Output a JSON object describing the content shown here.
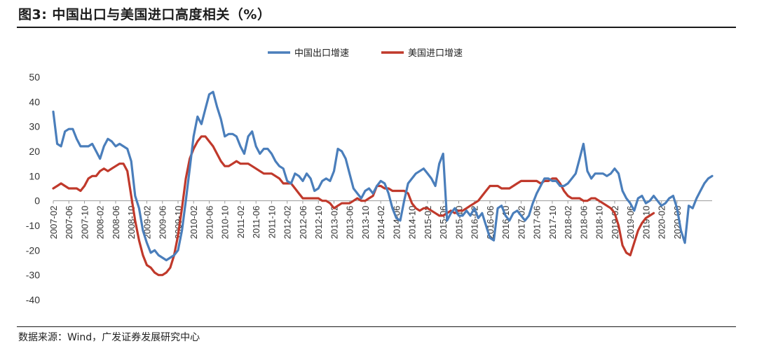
{
  "header": {
    "title": "图3:  中国出口与美国进口高度相关（%）"
  },
  "footer": {
    "source": "数据来源：Wind，广发证券发展研究中心"
  },
  "chart_data": {
    "type": "line",
    "title": "图3:  中国出口与美国进口高度相关（%）",
    "xlabel": "",
    "ylabel": "",
    "ylim": [
      -40,
      50
    ],
    "yticks": [
      50,
      40,
      30,
      20,
      10,
      0,
      -10,
      -20,
      -30,
      -40
    ],
    "grid": false,
    "legend_position": "top-center",
    "x_tick_labels": [
      "2007-02",
      "2007-06",
      "2007-10",
      "2008-02",
      "2008-06",
      "2008-10",
      "2009-02",
      "2009-06",
      "2009-10",
      "2010-02",
      "2010-06",
      "2010-10",
      "2011-02",
      "2011-06",
      "2011-10",
      "2012-02",
      "2012-06",
      "2012-10",
      "2013-02",
      "2013-06",
      "2013-10",
      "2014-02",
      "2014-06",
      "2014-10",
      "2015-02",
      "2015-06",
      "2015-10",
      "2016-02",
      "2016-06",
      "2016-10",
      "2017-02",
      "2017-06",
      "2017-10",
      "2018-02",
      "2018-06",
      "2018-10",
      "2019-02",
      "2019-06",
      "2019-10",
      "2020-02",
      "2020-06"
    ],
    "series": [
      {
        "name": "中国出口增速",
        "color": "#4a7ebb",
        "start": "2007-02",
        "values": [
          36,
          23,
          22,
          28,
          29,
          29,
          25,
          22,
          22,
          22,
          23,
          20,
          17,
          22,
          25,
          24,
          22,
          23,
          22,
          21,
          16,
          2,
          -3,
          -12,
          -17,
          -21,
          -20,
          -22,
          -23,
          -24,
          -23,
          -22,
          -20,
          -12,
          0,
          13,
          26,
          34,
          31,
          37,
          43,
          44,
          38,
          33,
          26,
          27,
          27,
          26,
          22,
          19,
          26,
          28,
          22,
          19,
          21,
          21,
          19,
          16,
          14,
          13,
          8,
          7,
          11,
          10,
          8,
          11,
          9,
          4,
          5,
          8,
          9,
          8,
          12,
          21,
          20,
          17,
          11,
          5,
          3,
          1,
          4,
          5,
          3,
          6,
          8,
          7,
          3,
          -3,
          -7,
          -8,
          0,
          7,
          9,
          11,
          12,
          13,
          11,
          9,
          6,
          15,
          19,
          -8,
          -5,
          -3,
          -6,
          -6,
          -4,
          -6,
          -3,
          -7,
          -5,
          -10,
          -15,
          -16,
          -3,
          -2,
          -6,
          -8,
          -5,
          -4,
          -6,
          -8,
          -6,
          -1,
          3,
          6,
          9,
          9,
          8,
          8,
          6,
          6,
          7,
          9,
          11,
          17,
          23,
          12,
          9,
          11,
          11,
          11,
          10,
          11,
          13,
          11,
          4,
          1,
          -1,
          -4,
          1,
          2,
          -1,
          0,
          2,
          0,
          -2,
          -1,
          1,
          2,
          -3,
          -12,
          -17,
          -2,
          -3,
          1,
          4,
          7,
          9,
          10
        ]
      },
      {
        "name": "美国进口增速",
        "color": "#c0392b",
        "start": "2007-02",
        "values": [
          5,
          6,
          7,
          6,
          5,
          5,
          5,
          4,
          6,
          9,
          10,
          10,
          12,
          13,
          12,
          13,
          14,
          15,
          15,
          12,
          2,
          -8,
          -16,
          -22,
          -26,
          -27,
          -29,
          -30,
          -30,
          -29,
          -27,
          -22,
          -14,
          -3,
          9,
          17,
          21,
          24,
          26,
          26,
          24,
          22,
          19,
          16,
          14,
          14,
          15,
          16,
          15,
          15,
          15,
          14,
          13,
          12,
          11,
          11,
          11,
          10,
          9,
          7,
          7,
          7,
          5,
          3,
          1,
          1,
          1,
          1,
          1,
          0,
          0,
          -1,
          -3,
          -2,
          -1,
          -1,
          -1,
          0,
          1,
          0,
          0,
          1,
          2,
          6,
          6,
          5,
          5,
          4,
          4,
          4,
          4,
          3,
          -1,
          -3,
          -4,
          -3,
          -3,
          -4,
          -5,
          -6,
          -6,
          -5,
          -4,
          -5,
          -4,
          -4,
          -3,
          -2,
          -1,
          0,
          2,
          4,
          6,
          6,
          6,
          5,
          5,
          5,
          6,
          7,
          8,
          8,
          8,
          8,
          8,
          7,
          8,
          8,
          9,
          9,
          7,
          4,
          2,
          1,
          1,
          1,
          0,
          0,
          1,
          1,
          0,
          -1,
          -2,
          -3,
          -5,
          -10,
          -18,
          -21,
          -22,
          -17,
          -12,
          -9,
          -7,
          -6,
          -5
        ]
      }
    ]
  }
}
